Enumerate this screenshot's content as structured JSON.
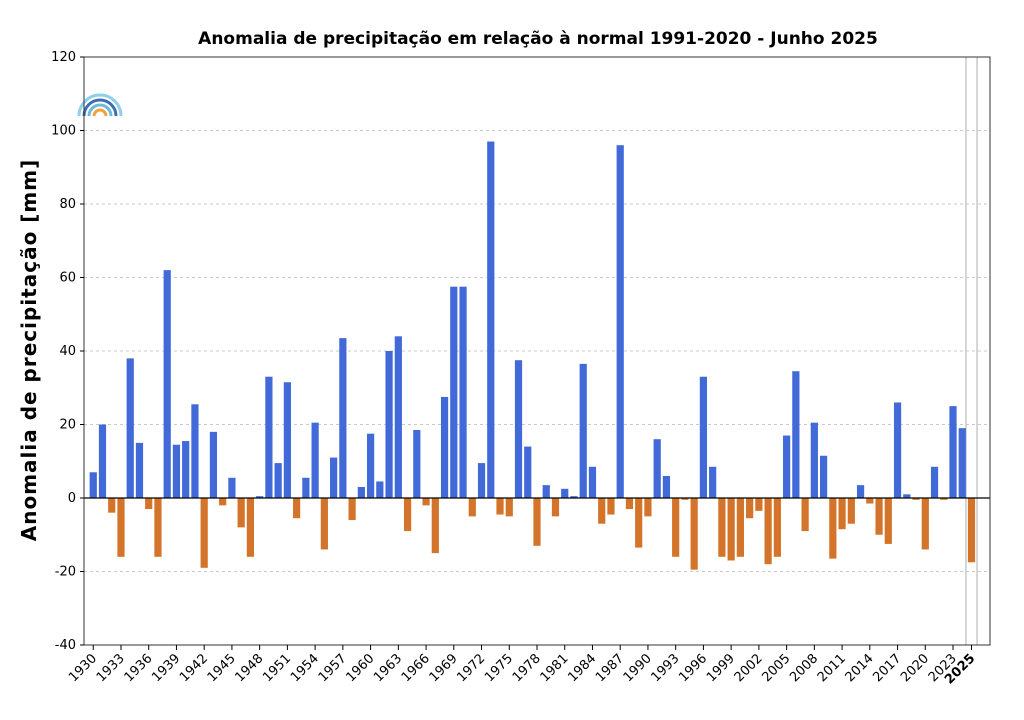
{
  "chart_data": {
    "type": "bar",
    "title": "Anomalia de precipitação em relação à normal 1991-2020 - Junho 2025",
    "xlabel": "",
    "ylabel": "Anomalia de precipitação [mm]",
    "ylim": [
      -40,
      120
    ],
    "yticks": [
      -40,
      -20,
      0,
      20,
      40,
      60,
      80,
      100,
      120
    ],
    "grid": "horizontal dashed",
    "xlim": [
      1929,
      2027
    ],
    "xtick_labels": [
      "1930",
      "1933",
      "1936",
      "1939",
      "1942",
      "1945",
      "1948",
      "1951",
      "1954",
      "1957",
      "1960",
      "1963",
      "1966",
      "1969",
      "1972",
      "1975",
      "1978",
      "1981",
      "1984",
      "1987",
      "1990",
      "1993",
      "1996",
      "1999",
      "2002",
      "2005",
      "2008",
      "2011",
      "2014",
      "2017",
      "2020",
      "2023",
      "2025"
    ],
    "highlight_year": "2025",
    "colors": {
      "positive": "#4169d8",
      "negative": "#d4742a",
      "highlight_lines": "#c8c8c8"
    },
    "x": [
      1930,
      1931,
      1932,
      1933,
      1934,
      1935,
      1936,
      1937,
      1938,
      1939,
      1940,
      1941,
      1942,
      1943,
      1944,
      1945,
      1946,
      1947,
      1948,
      1949,
      1950,
      1951,
      1952,
      1953,
      1954,
      1955,
      1956,
      1957,
      1958,
      1959,
      1960,
      1961,
      1962,
      1963,
      1964,
      1965,
      1966,
      1967,
      1968,
      1969,
      1970,
      1971,
      1972,
      1973,
      1974,
      1975,
      1976,
      1977,
      1978,
      1979,
      1980,
      1981,
      1982,
      1983,
      1984,
      1985,
      1986,
      1987,
      1988,
      1989,
      1990,
      1991,
      1992,
      1993,
      1994,
      1995,
      1996,
      1997,
      1998,
      1999,
      2000,
      2001,
      2002,
      2003,
      2004,
      2005,
      2006,
      2007,
      2008,
      2009,
      2010,
      2011,
      2012,
      2013,
      2014,
      2015,
      2016,
      2017,
      2018,
      2019,
      2020,
      2021,
      2022,
      2023,
      2024,
      2025
    ],
    "values": [
      7,
      20,
      -4,
      -16,
      38,
      15,
      -3,
      -16,
      62,
      14.5,
      15.5,
      25.5,
      -19,
      18,
      -2,
      5.5,
      -8,
      -16,
      0.5,
      33,
      9.5,
      31.5,
      -5.5,
      5.5,
      20.5,
      -14,
      11,
      43.5,
      -6,
      3,
      17.5,
      4.5,
      40,
      44,
      -9,
      18.5,
      -2,
      -15,
      27.5,
      57.5,
      57.5,
      -5,
      9.5,
      97,
      -4.5,
      -5,
      37.5,
      14,
      -13,
      3.5,
      -5,
      2.5,
      0.5,
      36.5,
      8.5,
      -7,
      -4.5,
      96,
      -3,
      -13.5,
      -5,
      16,
      6,
      -16,
      -0.5,
      -19.5,
      33,
      8.5,
      -16,
      -17,
      -16,
      -5.5,
      -3.5,
      -18,
      -16,
      17,
      34.5,
      -9,
      20.5,
      11.5,
      -16.5,
      -8.5,
      -7,
      3.5,
      -1.5,
      -10,
      -12.5,
      26,
      1,
      -0.5,
      -14,
      8.5,
      -0.5,
      25,
      19,
      -17.5
    ]
  }
}
